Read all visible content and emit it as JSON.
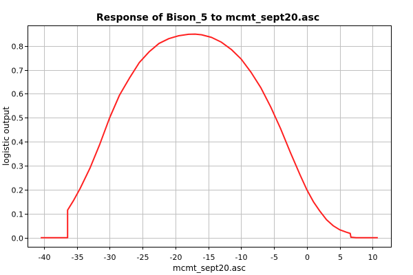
{
  "chart_data": {
    "type": "line",
    "title": "Response of Bison_5 to mcmt_sept20.asc",
    "xlabel": "mcmt_sept20.asc",
    "ylabel": "logistic output",
    "xlim": [
      -42.5,
      12.8
    ],
    "ylim": [
      -0.038,
      0.885
    ],
    "x_ticks": [
      -40,
      -35,
      -30,
      -25,
      -20,
      -15,
      -10,
      -5,
      0,
      5,
      10
    ],
    "y_ticks": [
      0.0,
      0.1,
      0.2,
      0.3,
      0.4,
      0.5,
      0.6,
      0.7,
      0.8
    ],
    "x_tick_labels": [
      "-40",
      "-35",
      "-30",
      "-25",
      "-20",
      "-15",
      "-10",
      "-5",
      "0",
      "5",
      "10"
    ],
    "y_tick_labels": [
      "0.0",
      "0.1",
      "0.2",
      "0.3",
      "0.4",
      "0.5",
      "0.6",
      "0.7",
      "0.8"
    ],
    "grid": true,
    "series": [
      {
        "color": "#ff2020",
        "x": [
          -40.5,
          -36.4,
          -36.4,
          -35.5,
          -34.5,
          -33,
          -31.5,
          -30,
          -28.5,
          -27,
          -25.5,
          -24,
          -22.5,
          -21,
          -19.5,
          -18,
          -17,
          -16,
          -14.5,
          -13,
          -11.5,
          -10,
          -8.5,
          -7,
          -5.5,
          -4,
          -2.5,
          -1,
          0,
          1,
          2,
          3,
          4,
          5,
          6,
          6.6,
          6.7,
          7.5,
          8.5,
          9.5,
          10.8
        ],
        "y": [
          0.0,
          0.0,
          0.115,
          0.155,
          0.205,
          0.29,
          0.39,
          0.5,
          0.595,
          0.665,
          0.73,
          0.775,
          0.81,
          0.83,
          0.842,
          0.848,
          0.849,
          0.846,
          0.835,
          0.815,
          0.785,
          0.745,
          0.69,
          0.625,
          0.545,
          0.455,
          0.355,
          0.26,
          0.2,
          0.15,
          0.11,
          0.075,
          0.05,
          0.033,
          0.023,
          0.018,
          0.002,
          0.0,
          0.0,
          0.0,
          0.0
        ]
      }
    ]
  }
}
